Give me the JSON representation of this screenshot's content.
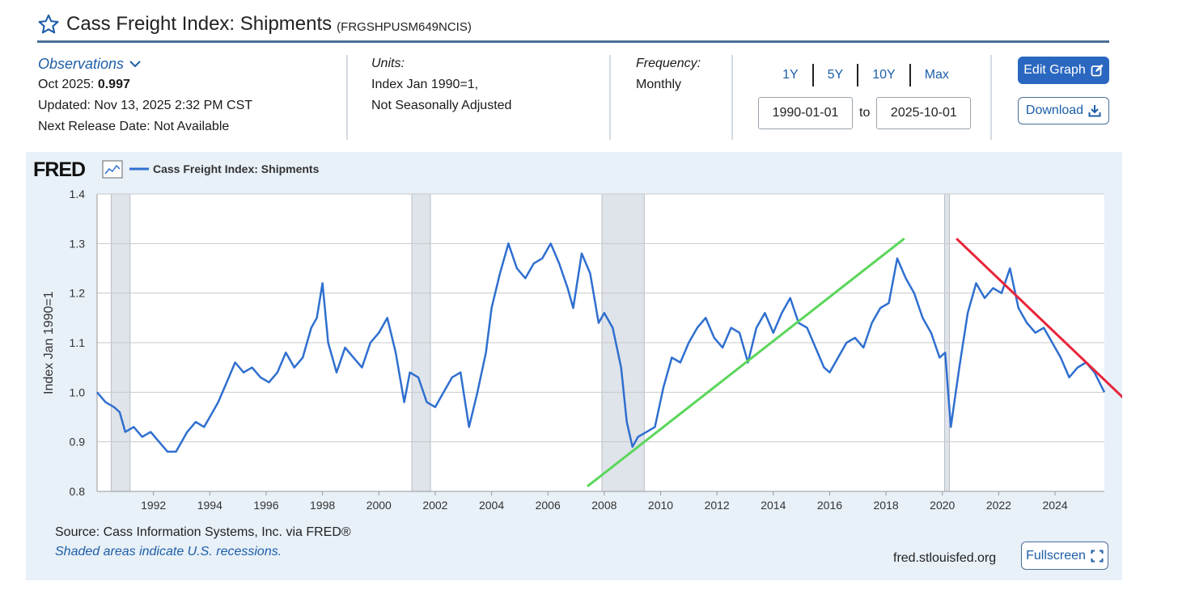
{
  "header": {
    "title": "Cass Freight Index: Shipments",
    "series_id": "(FRGSHPUSM649NCIS)"
  },
  "observations": {
    "label": "Observations",
    "date_label": "Oct 2025:",
    "value": "0.997",
    "updated": "Updated: Nov 13, 2025 2:32 PM CST",
    "next_release": "Next Release Date: Not Available"
  },
  "units": {
    "label": "Units:",
    "line1": "Index Jan 1990=1,",
    "line2": "Not Seasonally Adjusted"
  },
  "frequency": {
    "label": "Frequency:",
    "value": "Monthly"
  },
  "range": {
    "links": [
      "1Y",
      "5Y",
      "10Y",
      "Max"
    ],
    "start": "1990-01-01",
    "to_label": "to",
    "end": "2025-10-01"
  },
  "buttons": {
    "edit_graph": "Edit Graph",
    "download": "Download",
    "fullscreen": "Fullscreen"
  },
  "footer": {
    "source": "Source: Cass Information Systems, Inc. via FRED®",
    "shaded_note": "Shaded areas indicate U.S. recessions.",
    "url": "fred.stlouisfed.org"
  },
  "colors": {
    "series": "#2f6fcf",
    "accent": "#2a67c0",
    "recession": "#dfe3ea",
    "trend_up": "#5ad65a",
    "trend_down": "#e8243a"
  },
  "chart_data": {
    "type": "line",
    "logo": "FRED",
    "legend": "Cass Freight Index: Shipments",
    "ylabel": "Index Jan 1990=1",
    "ylim": [
      0.8,
      1.4
    ],
    "xlim": [
      1990.0,
      2025.75
    ],
    "y_ticks": [
      0.8,
      0.9,
      1.0,
      1.1,
      1.2,
      1.3,
      1.4
    ],
    "y_tick_labels": [
      "0.8",
      "0.9",
      "1.0",
      "1.1",
      "1.2",
      "1.3",
      "1.4"
    ],
    "x_ticks": [
      1992,
      1994,
      1996,
      1998,
      2000,
      2002,
      2004,
      2006,
      2008,
      2010,
      2012,
      2014,
      2016,
      2018,
      2020,
      2022,
      2024
    ],
    "x_tick_labels": [
      "1992",
      "1994",
      "1996",
      "1998",
      "2000",
      "2002",
      "2004",
      "2006",
      "2008",
      "2010",
      "2012",
      "2014",
      "2016",
      "2018",
      "2020",
      "2022",
      "2024"
    ],
    "recessions": [
      [
        1990.5,
        1991.17
      ],
      [
        2001.17,
        2001.83
      ],
      [
        2007.92,
        2009.42
      ],
      [
        2020.08,
        2020.25
      ]
    ],
    "series": [
      {
        "name": "Cass Freight Index: Shipments",
        "x": [
          1990.0,
          1990.3,
          1990.6,
          1990.8,
          1991.0,
          1991.3,
          1991.6,
          1991.9,
          1992.2,
          1992.5,
          1992.8,
          1993.2,
          1993.5,
          1993.8,
          1994.0,
          1994.3,
          1994.6,
          1994.9,
          1995.2,
          1995.5,
          1995.8,
          1996.1,
          1996.4,
          1996.7,
          1997.0,
          1997.3,
          1997.6,
          1997.8,
          1998.0,
          1998.2,
          1998.5,
          1998.8,
          1999.1,
          1999.4,
          1999.7,
          2000.0,
          2000.3,
          2000.6,
          2000.9,
          2001.1,
          2001.4,
          2001.7,
          2002.0,
          2002.3,
          2002.6,
          2002.9,
          2003.2,
          2003.5,
          2003.8,
          2004.0,
          2004.3,
          2004.6,
          2004.9,
          2005.2,
          2005.5,
          2005.8,
          2006.1,
          2006.4,
          2006.7,
          2006.9,
          2007.2,
          2007.5,
          2007.8,
          2008.0,
          2008.3,
          2008.6,
          2008.8,
          2009.0,
          2009.2,
          2009.5,
          2009.8,
          2010.1,
          2010.4,
          2010.7,
          2011.0,
          2011.3,
          2011.6,
          2011.9,
          2012.2,
          2012.5,
          2012.8,
          2013.1,
          2013.4,
          2013.7,
          2014.0,
          2014.3,
          2014.6,
          2014.9,
          2015.2,
          2015.5,
          2015.8,
          2016.0,
          2016.3,
          2016.6,
          2016.9,
          2017.2,
          2017.5,
          2017.8,
          2018.1,
          2018.4,
          2018.7,
          2019.0,
          2019.3,
          2019.6,
          2019.9,
          2020.1,
          2020.3,
          2020.6,
          2020.9,
          2021.2,
          2021.5,
          2021.8,
          2022.1,
          2022.4,
          2022.7,
          2023.0,
          2023.3,
          2023.6,
          2023.9,
          2024.2,
          2024.5,
          2024.8,
          2025.1,
          2025.4,
          2025.75
        ],
        "values": [
          1.0,
          0.98,
          0.97,
          0.96,
          0.92,
          0.93,
          0.91,
          0.92,
          0.9,
          0.88,
          0.88,
          0.92,
          0.94,
          0.93,
          0.95,
          0.98,
          1.02,
          1.06,
          1.04,
          1.05,
          1.03,
          1.02,
          1.04,
          1.08,
          1.05,
          1.07,
          1.13,
          1.15,
          1.22,
          1.1,
          1.04,
          1.09,
          1.07,
          1.05,
          1.1,
          1.12,
          1.15,
          1.08,
          0.98,
          1.04,
          1.03,
          0.98,
          0.97,
          1.0,
          1.03,
          1.04,
          0.93,
          1.0,
          1.08,
          1.17,
          1.24,
          1.3,
          1.25,
          1.23,
          1.26,
          1.27,
          1.3,
          1.26,
          1.21,
          1.17,
          1.28,
          1.24,
          1.14,
          1.16,
          1.13,
          1.05,
          0.94,
          0.89,
          0.91,
          0.92,
          0.93,
          1.01,
          1.07,
          1.06,
          1.1,
          1.13,
          1.15,
          1.11,
          1.09,
          1.13,
          1.12,
          1.06,
          1.13,
          1.16,
          1.12,
          1.16,
          1.19,
          1.14,
          1.13,
          1.09,
          1.05,
          1.04,
          1.07,
          1.1,
          1.11,
          1.09,
          1.14,
          1.17,
          1.18,
          1.27,
          1.23,
          1.2,
          1.15,
          1.12,
          1.07,
          1.08,
          0.93,
          1.05,
          1.16,
          1.22,
          1.19,
          1.21,
          1.2,
          1.25,
          1.17,
          1.14,
          1.12,
          1.13,
          1.1,
          1.07,
          1.03,
          1.05,
          1.06,
          1.04,
          1.0
        ],
        "color": "#2f6fcf"
      }
    ],
    "annotations": [
      {
        "name": "green-uptrend-line",
        "x": [
          2007.4,
          2018.65
        ],
        "y": [
          0.81,
          1.31
        ],
        "color": "#5ad65a"
      },
      {
        "name": "red-downtrend-line",
        "x": [
          2020.5,
          2026.95
        ],
        "y": [
          1.31,
          0.96
        ],
        "color": "#e8243a"
      }
    ]
  }
}
